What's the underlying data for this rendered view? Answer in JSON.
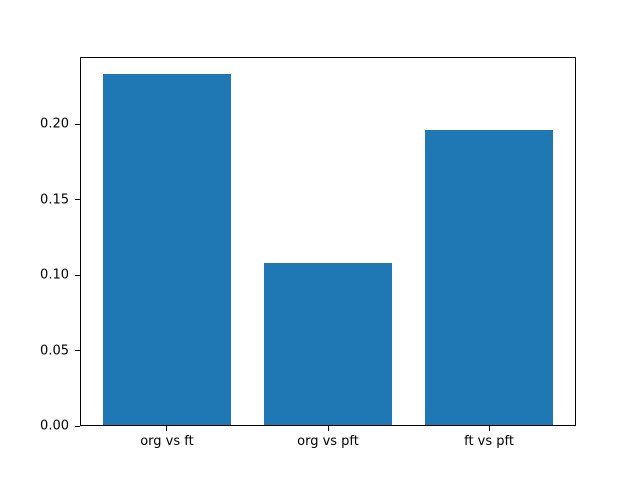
{
  "figure": {
    "background": "#ffffff",
    "title": ""
  },
  "chart_data": {
    "type": "bar",
    "title": "",
    "xlabel": "",
    "ylabel": "",
    "categories": [
      "org vs ft",
      "org vs pft",
      "ft vs pft"
    ],
    "values": [
      0.233,
      0.108,
      0.196
    ],
    "yticks": [
      0.0,
      0.05,
      0.1,
      0.15,
      0.2
    ],
    "ytick_labels": [
      "0.00",
      "0.05",
      "0.10",
      "0.15",
      "0.20"
    ],
    "ylim": [
      0,
      0.2444
    ],
    "xlim": [
      -0.54,
      2.54
    ],
    "bar_width": 0.8,
    "bar_color": "#1f77b4",
    "axis_color": "#000000",
    "grid": false,
    "legend": false
  }
}
